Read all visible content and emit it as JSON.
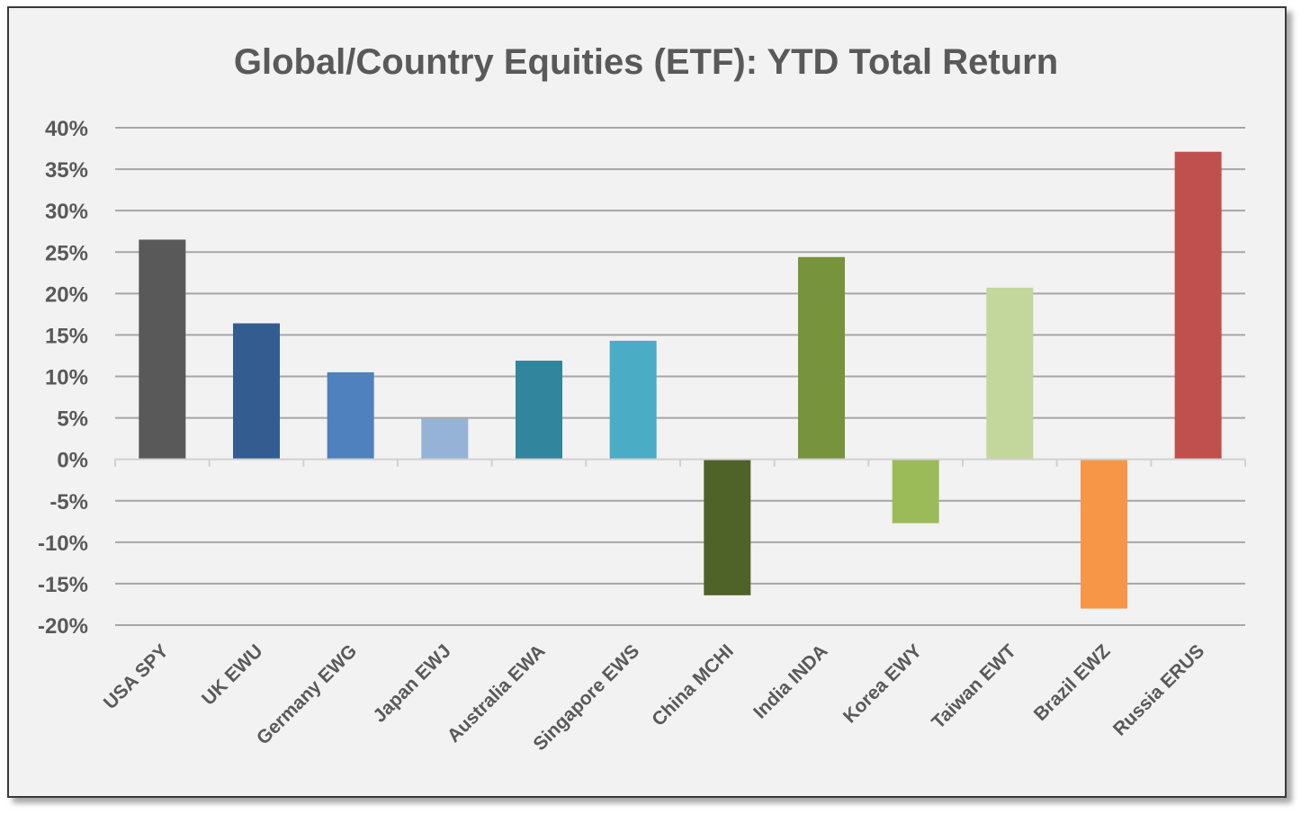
{
  "chart_data": {
    "type": "bar",
    "title": "Global/Country Equities (ETF): YTD Total Return",
    "xlabel": "",
    "ylabel": "",
    "ylim": [
      -20,
      40
    ],
    "yticks": [
      40,
      35,
      30,
      25,
      20,
      15,
      10,
      5,
      0,
      -5,
      -10,
      -15,
      -20
    ],
    "ytick_labels": [
      "40%",
      "35%",
      "30%",
      "25%",
      "20%",
      "15%",
      "10%",
      "5%",
      "0%",
      "-5%",
      "-10%",
      "-15%",
      "-20%"
    ],
    "grid": true,
    "legend": false,
    "categories": [
      "USA SPY",
      "UK EWU",
      "Germany EWG",
      "Japan EWJ",
      "Australia EWA",
      "Singapore EWS",
      "China MCHI",
      "India INDA",
      "Korea EWY",
      "Taiwan EWT",
      "Brazil EWZ",
      "Russia ERUS"
    ],
    "values": [
      26.5,
      16.4,
      10.5,
      4.9,
      11.9,
      14.3,
      -16.4,
      24.4,
      -7.7,
      20.7,
      -18.0,
      37.1
    ],
    "colors": [
      "#595959",
      "#335c91",
      "#4e81bd",
      "#95b3d7",
      "#31859c",
      "#4bacc6",
      "#4f6228",
      "#77933c",
      "#9bbb59",
      "#c3d69b",
      "#f79646",
      "#c0504d"
    ]
  }
}
